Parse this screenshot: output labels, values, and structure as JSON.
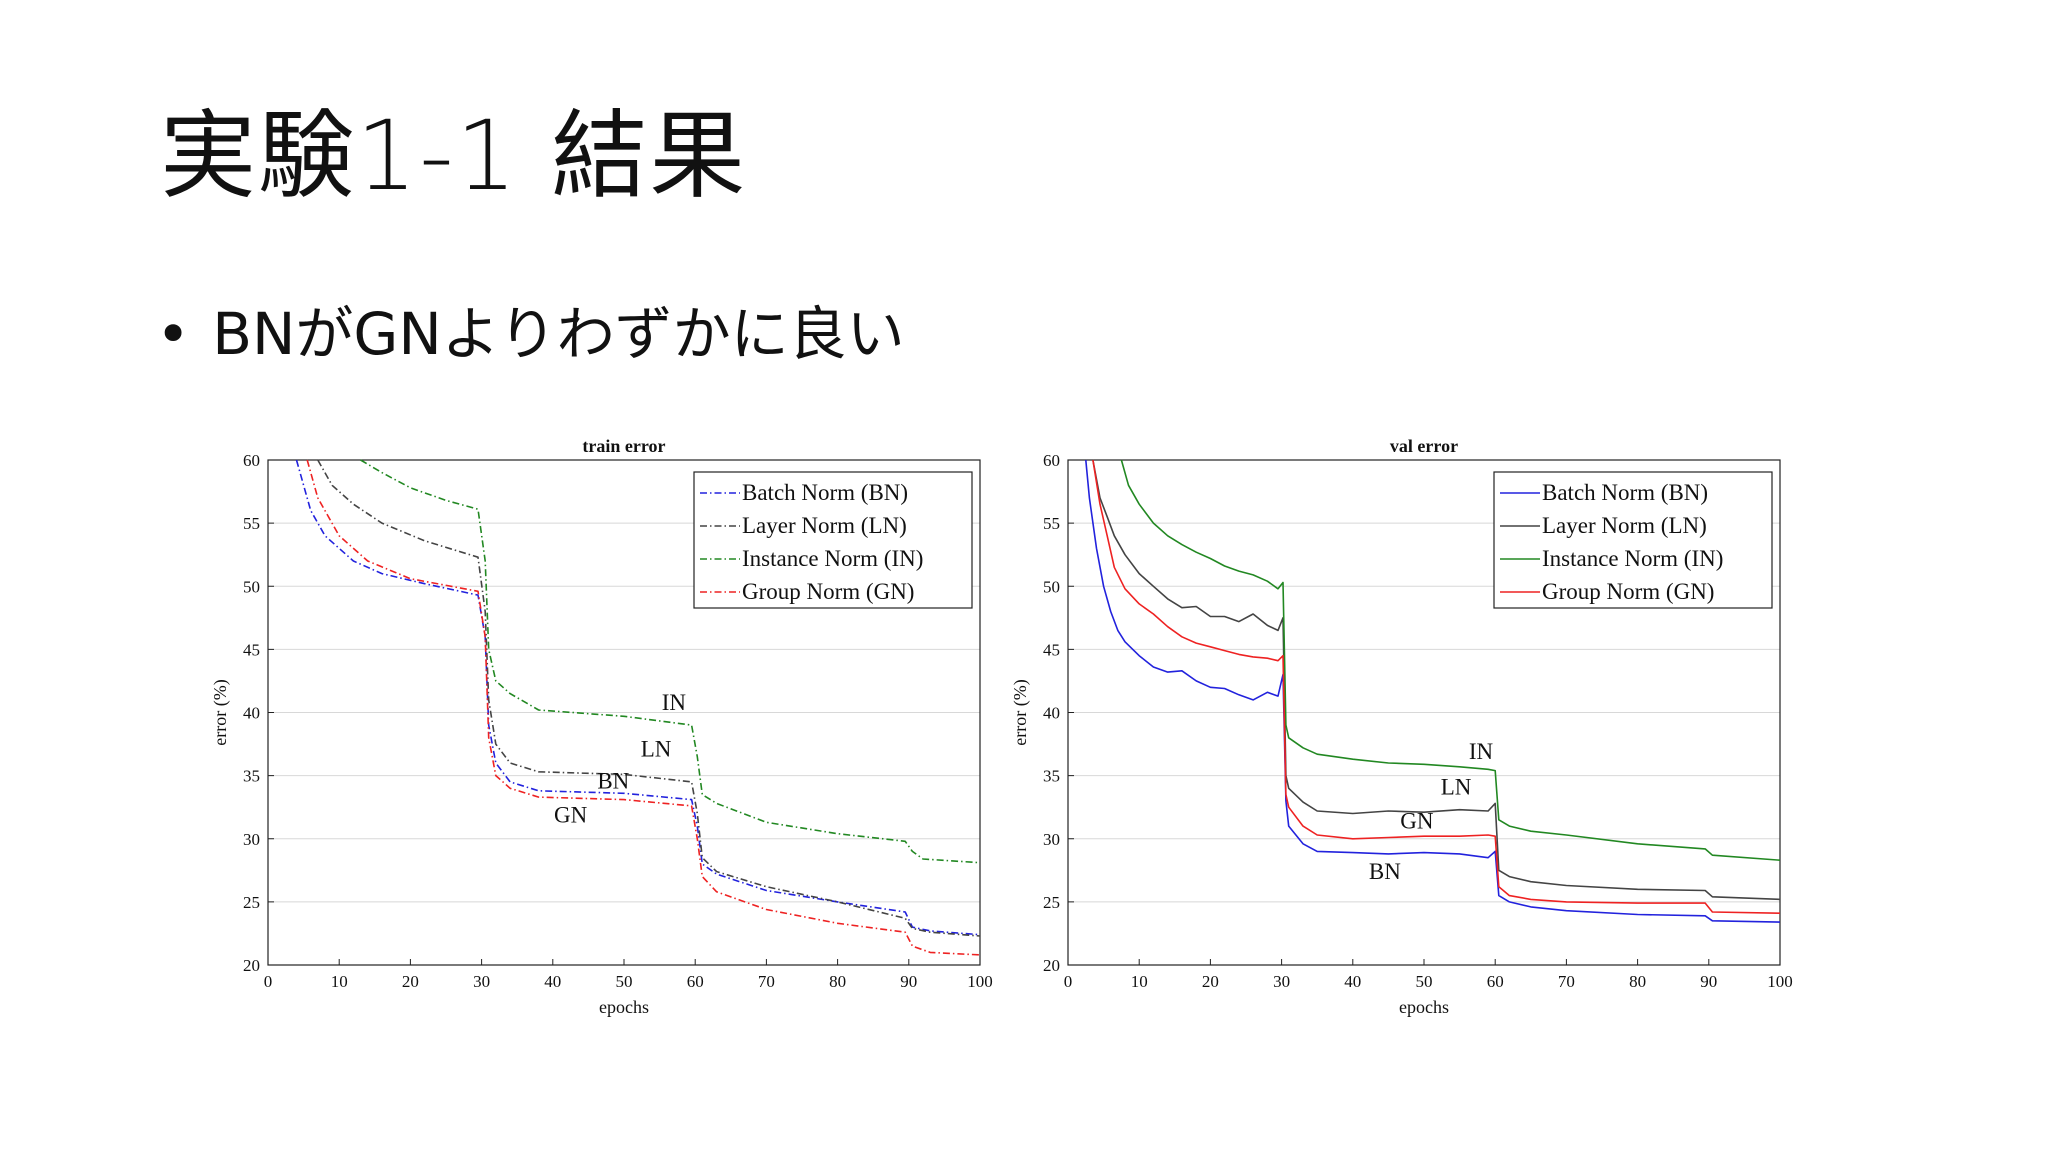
{
  "slide": {
    "title": "実験1-1 結果",
    "bullet": "BNがGNよりわずかに良い"
  },
  "chart_data": [
    {
      "type": "line",
      "title": "train error",
      "xlabel": "epochs",
      "ylabel": "error (%)",
      "xlim": [
        0,
        100
      ],
      "ylim": [
        20,
        60
      ],
      "xticks": [
        0,
        10,
        20,
        30,
        40,
        50,
        60,
        70,
        80,
        90,
        100
      ],
      "yticks": [
        20,
        25,
        30,
        35,
        40,
        45,
        50,
        55,
        60
      ],
      "grid": "horizontal",
      "line_style": "dashdot",
      "legend_position": "top-right",
      "series": [
        {
          "name": "Batch Norm (BN)",
          "color": "#2222dd",
          "points": [
            [
              4,
              60
            ],
            [
              6,
              56
            ],
            [
              8,
              54
            ],
            [
              12,
              52
            ],
            [
              16,
              51
            ],
            [
              22,
              50.2
            ],
            [
              29.5,
              49.3
            ],
            [
              30.5,
              46
            ],
            [
              31,
              39
            ],
            [
              32,
              36
            ],
            [
              34,
              34.5
            ],
            [
              38,
              33.8
            ],
            [
              50,
              33.6
            ],
            [
              59.5,
              33.1
            ],
            [
              60.3,
              31
            ],
            [
              61,
              28
            ],
            [
              63,
              27.2
            ],
            [
              70,
              25.9
            ],
            [
              80,
              25
            ],
            [
              89.5,
              24.2
            ],
            [
              90.5,
              23
            ],
            [
              93,
              22.7
            ],
            [
              100,
              22.4
            ]
          ]
        },
        {
          "name": "Layer Norm (LN)",
          "color": "#444444",
          "points": [
            [
              7,
              60
            ],
            [
              9,
              58
            ],
            [
              12,
              56.5
            ],
            [
              16,
              55
            ],
            [
              22,
              53.6
            ],
            [
              29.5,
              52.3
            ],
            [
              30.5,
              48
            ],
            [
              31,
              41
            ],
            [
              32,
              37.5
            ],
            [
              34,
              36
            ],
            [
              38,
              35.3
            ],
            [
              50,
              35.1
            ],
            [
              59.5,
              34.5
            ],
            [
              60.3,
              32
            ],
            [
              61,
              28.5
            ],
            [
              63,
              27.4
            ],
            [
              70,
              26.2
            ],
            [
              80,
              25
            ],
            [
              89.5,
              23.7
            ],
            [
              90.5,
              22.9
            ],
            [
              93,
              22.6
            ],
            [
              100,
              22.3
            ]
          ]
        },
        {
          "name": "Instance Norm (IN)",
          "color": "#228822",
          "points": [
            [
              13,
              60
            ],
            [
              16,
              59
            ],
            [
              20,
              57.8
            ],
            [
              25,
              56.8
            ],
            [
              29.5,
              56.1
            ],
            [
              30.5,
              52
            ],
            [
              31,
              45
            ],
            [
              32,
              42.5
            ],
            [
              34,
              41.5
            ],
            [
              38,
              40.2
            ],
            [
              50,
              39.7
            ],
            [
              59.5,
              39
            ],
            [
              60.3,
              36.5
            ],
            [
              61,
              33.5
            ],
            [
              63,
              32.8
            ],
            [
              70,
              31.3
            ],
            [
              80,
              30.4
            ],
            [
              89.5,
              29.8
            ],
            [
              90.5,
              29
            ],
            [
              92,
              28.4
            ],
            [
              100,
              28.1
            ]
          ]
        },
        {
          "name": "Group Norm (GN)",
          "color": "#ee2222",
          "points": [
            [
              5.5,
              60
            ],
            [
              7,
              57
            ],
            [
              10,
              54
            ],
            [
              14,
              52
            ],
            [
              20,
              50.6
            ],
            [
              29.5,
              49.6
            ],
            [
              30.5,
              46
            ],
            [
              31,
              38
            ],
            [
              32,
              35
            ],
            [
              34,
              34
            ],
            [
              38,
              33.3
            ],
            [
              50,
              33.1
            ],
            [
              59.5,
              32.6
            ],
            [
              60.3,
              30
            ],
            [
              61,
              27
            ],
            [
              63,
              25.8
            ],
            [
              70,
              24.4
            ],
            [
              80,
              23.3
            ],
            [
              89.5,
              22.6
            ],
            [
              90.5,
              21.5
            ],
            [
              93,
              21
            ],
            [
              100,
              20.8
            ]
          ]
        }
      ],
      "annotations": [
        {
          "text": "IN",
          "x": 57,
          "y": 40.2
        },
        {
          "text": "LN",
          "x": 54.5,
          "y": 36.5
        },
        {
          "text": "BN",
          "x": 48.5,
          "y": 34
        },
        {
          "text": "GN",
          "x": 42.5,
          "y": 31.3
        }
      ]
    },
    {
      "type": "line",
      "title": "val error",
      "xlabel": "epochs",
      "ylabel": "error (%)",
      "xlim": [
        0,
        100
      ],
      "ylim": [
        20,
        60
      ],
      "xticks": [
        0,
        10,
        20,
        30,
        40,
        50,
        60,
        70,
        80,
        90,
        100
      ],
      "yticks": [
        20,
        25,
        30,
        35,
        40,
        45,
        50,
        55,
        60
      ],
      "grid": "horizontal",
      "line_style": "solid",
      "legend_position": "top-right",
      "series": [
        {
          "name": "Batch Norm (BN)",
          "color": "#2222dd",
          "points": [
            [
              2.5,
              60
            ],
            [
              3,
              57
            ],
            [
              4,
              53
            ],
            [
              5,
              50
            ],
            [
              6,
              48
            ],
            [
              7,
              46.5
            ],
            [
              8,
              45.6
            ],
            [
              10,
              44.5
            ],
            [
              12,
              43.6
            ],
            [
              14,
              43.2
            ],
            [
              16,
              43.3
            ],
            [
              18,
              42.5
            ],
            [
              20,
              42
            ],
            [
              22,
              41.9
            ],
            [
              24,
              41.4
            ],
            [
              26,
              41
            ],
            [
              28,
              41.6
            ],
            [
              29.5,
              41.3
            ],
            [
              30.2,
              43
            ],
            [
              30.6,
              33
            ],
            [
              31,
              31
            ],
            [
              33,
              29.6
            ],
            [
              35,
              29
            ],
            [
              40,
              28.9
            ],
            [
              45,
              28.8
            ],
            [
              50,
              28.9
            ],
            [
              55,
              28.8
            ],
            [
              59,
              28.5
            ],
            [
              60,
              29
            ],
            [
              60.5,
              25.5
            ],
            [
              62,
              25
            ],
            [
              65,
              24.6
            ],
            [
              70,
              24.3
            ],
            [
              80,
              24
            ],
            [
              89.5,
              23.9
            ],
            [
              90.5,
              23.5
            ],
            [
              100,
              23.4
            ]
          ]
        },
        {
          "name": "Layer Norm (LN)",
          "color": "#444444",
          "points": [
            [
              3.5,
              60
            ],
            [
              4.5,
              57
            ],
            [
              5.5,
              55.5
            ],
            [
              6.5,
              54
            ],
            [
              8,
              52.5
            ],
            [
              10,
              51
            ],
            [
              12,
              50
            ],
            [
              14,
              49
            ],
            [
              16,
              48.3
            ],
            [
              18,
              48.4
            ],
            [
              20,
              47.6
            ],
            [
              22,
              47.6
            ],
            [
              24,
              47.2
            ],
            [
              26,
              47.8
            ],
            [
              28,
              46.9
            ],
            [
              29.5,
              46.5
            ],
            [
              30.2,
              47.5
            ],
            [
              30.6,
              35
            ],
            [
              31,
              34
            ],
            [
              33,
              32.9
            ],
            [
              35,
              32.2
            ],
            [
              40,
              32
            ],
            [
              45,
              32.2
            ],
            [
              50,
              32.1
            ],
            [
              55,
              32.3
            ],
            [
              59,
              32.2
            ],
            [
              60,
              32.8
            ],
            [
              60.5,
              27.5
            ],
            [
              62,
              27
            ],
            [
              65,
              26.6
            ],
            [
              70,
              26.3
            ],
            [
              80,
              26
            ],
            [
              89.5,
              25.9
            ],
            [
              90.5,
              25.4
            ],
            [
              100,
              25.2
            ]
          ]
        },
        {
          "name": "Instance Norm (IN)",
          "color": "#228822",
          "points": [
            [
              7.5,
              60
            ],
            [
              8.5,
              58
            ],
            [
              10,
              56.5
            ],
            [
              12,
              55
            ],
            [
              14,
              54
            ],
            [
              16,
              53.3
            ],
            [
              18,
              52.7
            ],
            [
              20,
              52.2
            ],
            [
              22,
              51.6
            ],
            [
              24,
              51.2
            ],
            [
              26,
              50.9
            ],
            [
              28,
              50.4
            ],
            [
              29.5,
              49.8
            ],
            [
              30.2,
              50.3
            ],
            [
              30.6,
              39
            ],
            [
              31,
              38
            ],
            [
              33,
              37.2
            ],
            [
              35,
              36.7
            ],
            [
              40,
              36.3
            ],
            [
              45,
              36
            ],
            [
              50,
              35.9
            ],
            [
              55,
              35.7
            ],
            [
              59,
              35.5
            ],
            [
              60,
              35.4
            ],
            [
              60.5,
              31.5
            ],
            [
              62,
              31
            ],
            [
              65,
              30.6
            ],
            [
              70,
              30.3
            ],
            [
              80,
              29.6
            ],
            [
              89.5,
              29.2
            ],
            [
              90.5,
              28.7
            ],
            [
              100,
              28.3
            ]
          ]
        },
        {
          "name": "Group Norm (GN)",
          "color": "#ee2222",
          "points": [
            [
              3.5,
              60
            ],
            [
              4.5,
              56.5
            ],
            [
              5.5,
              54
            ],
            [
              6.5,
              51.5
            ],
            [
              8,
              49.8
            ],
            [
              10,
              48.6
            ],
            [
              12,
              47.8
            ],
            [
              14,
              46.8
            ],
            [
              16,
              46
            ],
            [
              18,
              45.5
            ],
            [
              20,
              45.2
            ],
            [
              22,
              44.9
            ],
            [
              24,
              44.6
            ],
            [
              26,
              44.4
            ],
            [
              28,
              44.3
            ],
            [
              29.5,
              44.1
            ],
            [
              30.2,
              44.5
            ],
            [
              30.6,
              33.5
            ],
            [
              31,
              32.5
            ],
            [
              33,
              31
            ],
            [
              35,
              30.3
            ],
            [
              40,
              30
            ],
            [
              45,
              30.1
            ],
            [
              50,
              30.2
            ],
            [
              55,
              30.2
            ],
            [
              59,
              30.3
            ],
            [
              60,
              30.2
            ],
            [
              60.5,
              26.2
            ],
            [
              62,
              25.5
            ],
            [
              65,
              25.2
            ],
            [
              70,
              25
            ],
            [
              80,
              24.9
            ],
            [
              89.5,
              24.9
            ],
            [
              90.5,
              24.2
            ],
            [
              100,
              24.1
            ]
          ]
        }
      ],
      "annotations": [
        {
          "text": "IN",
          "x": 58,
          "y": 36.3
        },
        {
          "text": "LN",
          "x": 54.5,
          "y": 33.5
        },
        {
          "text": "GN",
          "x": 49,
          "y": 30.8
        },
        {
          "text": "BN",
          "x": 44.5,
          "y": 26.8
        }
      ]
    }
  ]
}
